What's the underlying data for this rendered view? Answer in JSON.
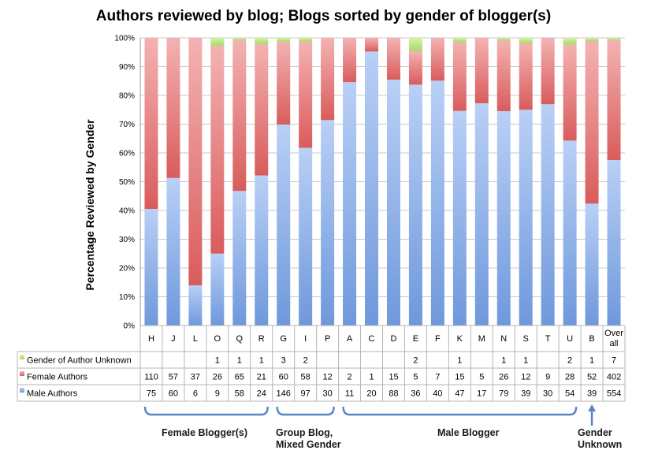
{
  "chart_data": {
    "type": "bar",
    "stacked": "percent",
    "title": "Authors reviewed by blog; Blogs sorted by gender of blogger(s)",
    "ylabel": "Percentage Reviewed by Gender",
    "ylim": [
      0,
      100
    ],
    "yticks": [
      "0%",
      "10%",
      "20%",
      "30%",
      "40%",
      "50%",
      "60%",
      "70%",
      "80%",
      "90%",
      "100%"
    ],
    "grid": true,
    "categories": [
      "H",
      "J",
      "L",
      "O",
      "Q",
      "R",
      "G",
      "I",
      "P",
      "A",
      "C",
      "D",
      "E",
      "F",
      "K",
      "M",
      "N",
      "S",
      "T",
      "U",
      "B",
      "Over all"
    ],
    "series": [
      {
        "name": "Male Authors",
        "color": "#8fb3ec",
        "values": [
          75,
          60,
          6,
          9,
          58,
          24,
          146,
          97,
          30,
          11,
          20,
          88,
          36,
          40,
          47,
          17,
          79,
          39,
          30,
          54,
          39,
          554
        ],
        "labels": [
          "75",
          "60",
          "6",
          "9",
          "58",
          "24",
          "146",
          "97",
          "30",
          "11",
          "20",
          "88",
          "36",
          "40",
          "47",
          "17",
          "79",
          "39",
          "30",
          "54",
          "39",
          "554"
        ]
      },
      {
        "name": "Female Authors",
        "color": "#e07676",
        "values": [
          110,
          57,
          37,
          26,
          65,
          21,
          60,
          58,
          12,
          2,
          1,
          15,
          5,
          7,
          15,
          5,
          26,
          12,
          9,
          28,
          52,
          402
        ],
        "labels": [
          "110",
          "57",
          "37",
          "26",
          "65",
          "21",
          "60",
          "58",
          "12",
          "2",
          "1",
          "15",
          "5",
          "7",
          "15",
          "5",
          "26",
          "12",
          "9",
          "28",
          "52",
          "402"
        ]
      },
      {
        "name": "Gender of Author Unknown",
        "color": "#b4e07a",
        "values": [
          0,
          0,
          0,
          1,
          1,
          1,
          3,
          2,
          0,
          0,
          0,
          0,
          2,
          0,
          1,
          0,
          1,
          1,
          0,
          2,
          1,
          7
        ],
        "labels": [
          "",
          "",
          "",
          "1",
          "1",
          "1",
          "3",
          "2",
          "",
          "",
          "",
          "",
          "2",
          "",
          "1",
          "",
          "1",
          "1",
          "",
          "2",
          "1",
          "7"
        ]
      }
    ],
    "groups": [
      {
        "label": "Female Blogger(s)",
        "from": 0,
        "to": 5
      },
      {
        "label": "Group Blog, Mixed Gender",
        "from": 6,
        "to": 8
      },
      {
        "label": "Male Blogger",
        "from": 9,
        "to": 19
      },
      {
        "label": "Gender Unknown",
        "from": 20,
        "to": 20
      }
    ]
  }
}
